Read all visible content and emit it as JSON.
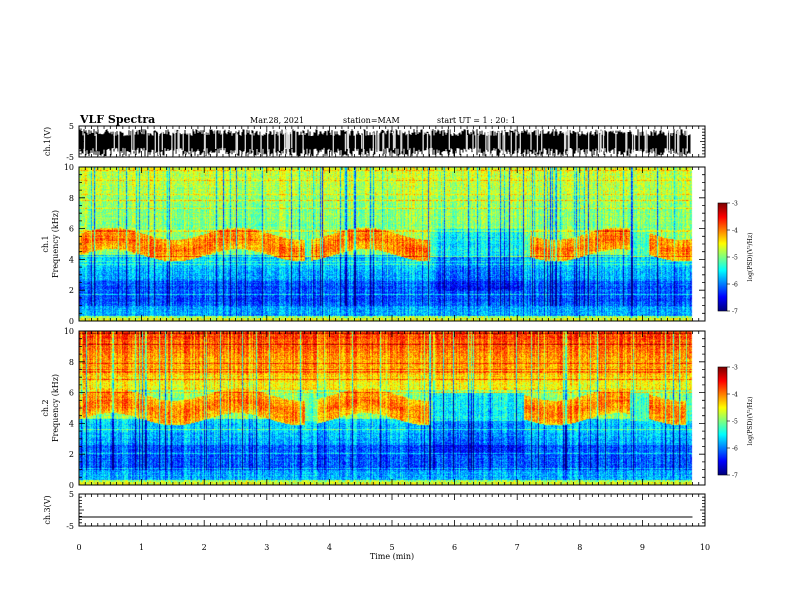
{
  "header": {
    "title": "VLF Spectra",
    "date": "Mar.28, 2021",
    "station": "station=MAM",
    "start": "start UT =  1 : 20: 1"
  },
  "chart_data": {
    "type": "heatmap",
    "title": "VLF Spectra",
    "xlabel": "Time (min)",
    "xlim": [
      0,
      10
    ],
    "xticks": [
      "0",
      "1",
      "2",
      "3",
      "4",
      "5",
      "6",
      "7",
      "8",
      "9",
      "10"
    ],
    "panels": [
      {
        "name": "ch.1 waveform",
        "ylabel": "ch.1(V)",
        "ylim": [
          -5,
          5
        ],
        "yticks": [
          "5",
          "-5"
        ],
        "kind": "waveform-dense"
      },
      {
        "name": "ch.1 spectrogram",
        "ylabel": "ch.1\nFrequency (kHz)",
        "ylabel_lines": [
          "ch.1",
          "Frequency (kHz)"
        ],
        "ylim": [
          0,
          10
        ],
        "yticks": [
          "0",
          "2",
          "4",
          "6",
          "8",
          "10"
        ],
        "colorbar": {
          "label": "log(PSD)(V²/Hz)",
          "range": [
            -7,
            -3
          ],
          "ticks": [
            "-3",
            "-4",
            "-5",
            "-6",
            "-7"
          ]
        },
        "band_center_khz": 5.0,
        "band_width_khz": 0.7,
        "band_segments_min": [
          [
            0.0,
            3.6
          ],
          [
            3.7,
            5.6
          ],
          [
            7.2,
            8.8
          ],
          [
            9.1,
            9.8
          ]
        ],
        "high_freq_level": "green",
        "data_end_min": 9.8
      },
      {
        "name": "ch.2 spectrogram",
        "ylabel": "ch.2\nFrequency (kHz)",
        "ylabel_lines": [
          "ch.2",
          "Frequency (kHz)"
        ],
        "ylim": [
          0,
          10
        ],
        "yticks": [
          "0",
          "2",
          "4",
          "6",
          "8",
          "10"
        ],
        "colorbar": {
          "label": "log(PSD)(V²/Hz)",
          "range": [
            -7,
            -3
          ],
          "ticks": [
            "-3",
            "-4",
            "-5",
            "-6",
            "-7"
          ]
        },
        "band_center_khz": 5.1,
        "band_width_khz": 0.8,
        "band_segments_min": [
          [
            0.0,
            3.6
          ],
          [
            3.8,
            5.6
          ],
          [
            7.1,
            8.8
          ],
          [
            9.1,
            9.7
          ]
        ],
        "high_freq_level": "red-yellow",
        "data_end_min": 9.8
      },
      {
        "name": "ch.3 waveform",
        "ylabel": "ch.3(V)",
        "ylim": [
          -5,
          5
        ],
        "yticks": [
          "5",
          "-5"
        ],
        "kind": "flat",
        "value": -2.2
      }
    ]
  }
}
